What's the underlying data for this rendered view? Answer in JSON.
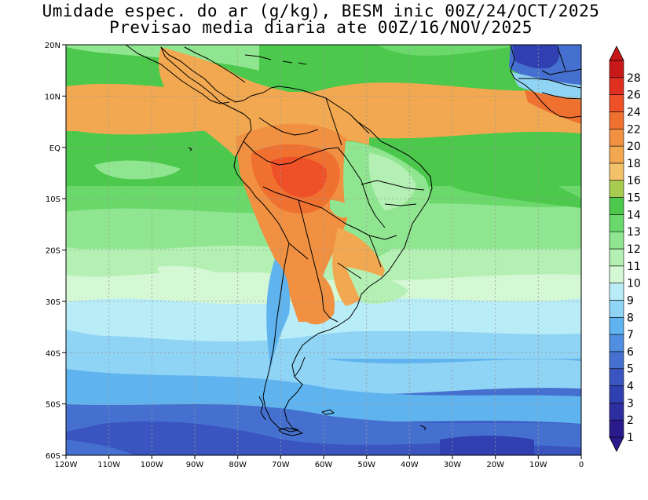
{
  "title": {
    "line1": "Umidade espec. do ar (g/kg), BESM inic 00Z/24/OCT/2025",
    "line2": "Previsao media diaria ate 00Z/16/NOV/2025"
  },
  "map": {
    "lon_range": [
      -120,
      0
    ],
    "lat_range": [
      -60,
      20
    ],
    "lon_ticks": [
      "120W",
      "110W",
      "100W",
      "90W",
      "80W",
      "70W",
      "60W",
      "50W",
      "40W",
      "30W",
      "20W",
      "10W",
      "0"
    ],
    "lat_ticks": [
      "20N",
      "10N",
      "EQ",
      "10S",
      "20S",
      "30S",
      "40S",
      "50S",
      "60S"
    ]
  },
  "colorbar": {
    "levels": [
      "1",
      "2",
      "3",
      "4",
      "5",
      "6",
      "7",
      "8",
      "9",
      "10",
      "11",
      "12",
      "13",
      "14",
      "15",
      "16",
      "18",
      "20",
      "22",
      "24",
      "26",
      "28"
    ],
    "colors": [
      "#2a1a8c",
      "#2d2fa0",
      "#3040b0",
      "#3a55c0",
      "#4670cf",
      "#4f8ee0",
      "#5fb3ee",
      "#8fd3f5",
      "#b8ecf7",
      "#d4f7d4",
      "#b4f0b4",
      "#90e690",
      "#6ad86a",
      "#4cc84c",
      "#a8cc50",
      "#f2c26a",
      "#f2a850",
      "#f09040",
      "#f07030",
      "#ee5028",
      "#e03020",
      "#c81818"
    ]
  },
  "colors": {
    "ocean_tropical": "#4cc84c",
    "land_hot": "#f07030",
    "southern_ocean": "#3a55c0",
    "coastline": "#000000"
  }
}
